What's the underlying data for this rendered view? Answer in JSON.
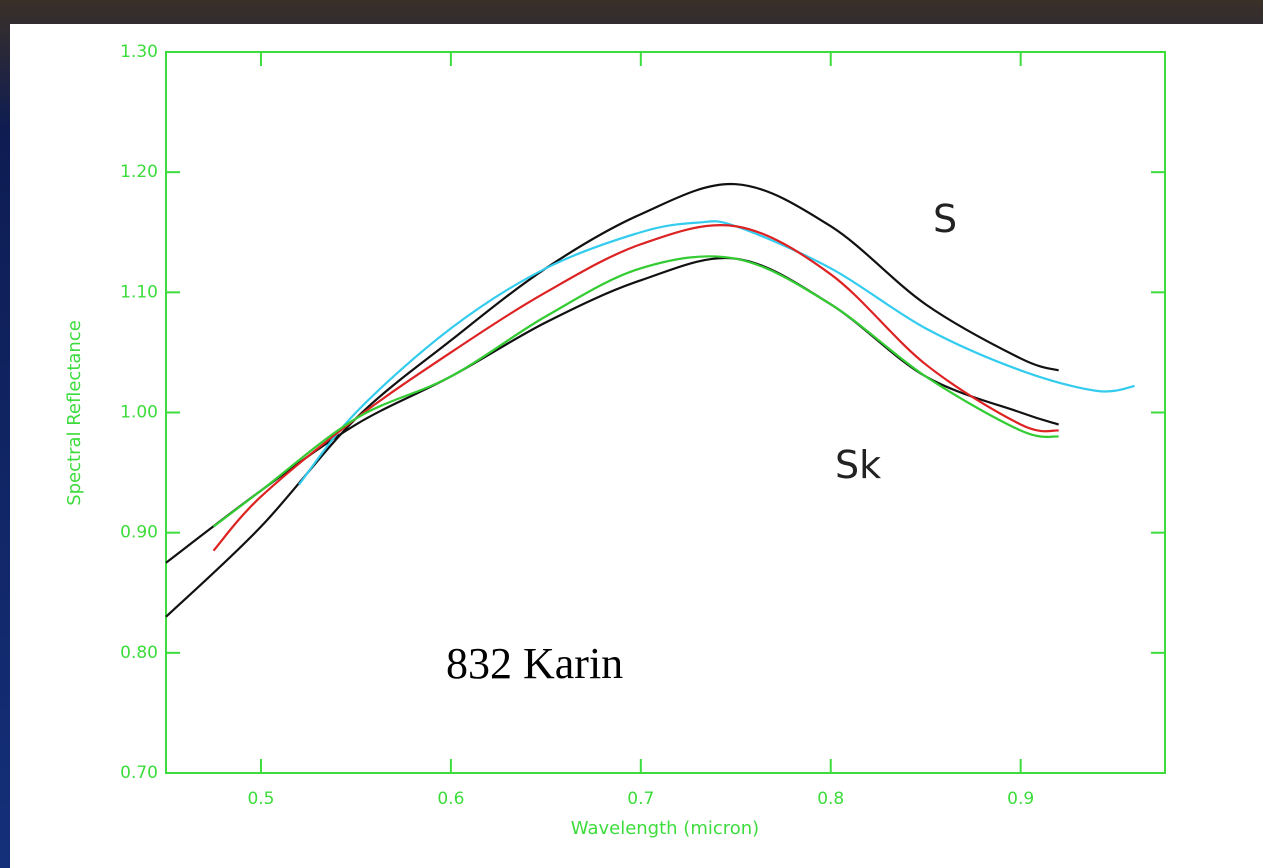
{
  "chart_data": {
    "type": "line",
    "x_label": "Wavelength (micron)",
    "y_label": "Spectral Reflectance",
    "xlim": [
      0.45,
      0.976
    ],
    "ylim": [
      0.7,
      1.3
    ],
    "xticks": [
      0.5,
      0.6,
      0.7,
      0.8,
      0.9
    ],
    "yticks": [
      {
        "value": 0.7,
        "label": "0.70"
      },
      {
        "value": 0.8,
        "label": "0.80"
      },
      {
        "value": 0.9,
        "label": "0.90"
      },
      {
        "value": 1.0,
        "label": "1.00"
      },
      {
        "value": 1.1,
        "label": "1.10"
      },
      {
        "value": 1.2,
        "label": "1.20"
      },
      {
        "value": 1.3,
        "label": "1.30"
      }
    ],
    "axis_color": "#3ddc3d",
    "series": [
      {
        "color": "#111111",
        "x": [
          0.45,
          0.5,
          0.55,
          0.6,
          0.65,
          0.7,
          0.75,
          0.8,
          0.85,
          0.9,
          0.92
        ],
        "values": [
          0.83,
          0.905,
          0.995,
          1.06,
          1.12,
          1.165,
          1.19,
          1.155,
          1.09,
          1.045,
          1.035
        ]
      },
      {
        "color": "#111111",
        "x": [
          0.45,
          0.5,
          0.55,
          0.6,
          0.65,
          0.7,
          0.75,
          0.8,
          0.85,
          0.9,
          0.92
        ],
        "values": [
          0.875,
          0.935,
          0.99,
          1.03,
          1.075,
          1.11,
          1.128,
          1.09,
          1.03,
          1.0,
          0.99
        ]
      },
      {
        "color": "#33ccee",
        "x": [
          0.52,
          0.55,
          0.6,
          0.65,
          0.7,
          0.73,
          0.75,
          0.8,
          0.85,
          0.9,
          0.94,
          0.96
        ],
        "values": [
          0.94,
          1.0,
          1.07,
          1.12,
          1.15,
          1.158,
          1.155,
          1.12,
          1.07,
          1.035,
          1.018,
          1.022
        ]
      },
      {
        "color": "#dd2222",
        "x": [
          0.475,
          0.5,
          0.55,
          0.6,
          0.65,
          0.7,
          0.75,
          0.8,
          0.85,
          0.9,
          0.92
        ],
        "values": [
          0.885,
          0.93,
          0.995,
          1.05,
          1.1,
          1.14,
          1.155,
          1.115,
          1.04,
          0.99,
          0.985
        ]
      },
      {
        "color": "#33cc33",
        "x": [
          0.475,
          0.5,
          0.55,
          0.6,
          0.65,
          0.7,
          0.75,
          0.8,
          0.85,
          0.9,
          0.92
        ],
        "values": [
          0.905,
          0.935,
          0.995,
          1.03,
          1.08,
          1.12,
          1.128,
          1.09,
          1.03,
          0.985,
          0.98
        ]
      }
    ],
    "annotations": [
      "S",
      "Sk",
      "832 Karin"
    ]
  }
}
